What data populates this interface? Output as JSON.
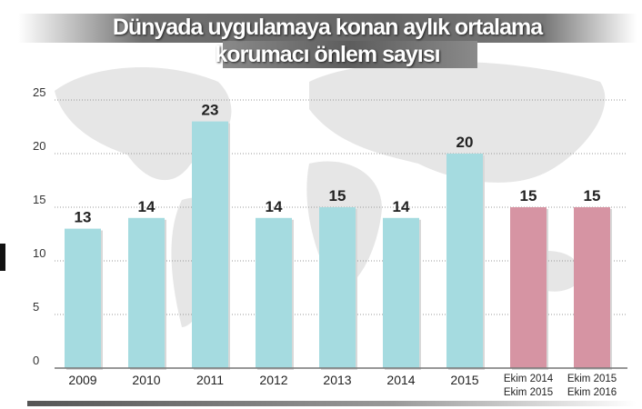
{
  "chart_data": {
    "type": "bar",
    "title": "Dünyada uygulamaya konan aylık ortalama korumacı önlem sayısı",
    "title_lines": [
      "Dünyada uygulamaya konan aylık ortalama",
      "korumacı önlem sayısı"
    ],
    "categories": [
      [
        "2009"
      ],
      [
        "2010"
      ],
      [
        "2011"
      ],
      [
        "2012"
      ],
      [
        "2013"
      ],
      [
        "2014"
      ],
      [
        "2015"
      ],
      [
        "Ekim 2014",
        "Ekim 2015"
      ],
      [
        "Ekim 2015",
        "Ekim 2016"
      ]
    ],
    "values": [
      13,
      14,
      23,
      14,
      15,
      14,
      20,
      15,
      15
    ],
    "data_labels": [
      "13",
      "14",
      "23",
      "14",
      "15",
      "14",
      "20",
      "15",
      "15"
    ],
    "bar_colors": [
      "#a5dbe0",
      "#a5dbe0",
      "#a5dbe0",
      "#a5dbe0",
      "#a5dbe0",
      "#a5dbe0",
      "#a5dbe0",
      "#d694a3",
      "#d694a3"
    ],
    "yticks": [
      "0",
      "5",
      "10",
      "15",
      "20",
      "25"
    ],
    "ylim": [
      0,
      25
    ],
    "grid": true,
    "xlabel": "",
    "ylabel": ""
  }
}
